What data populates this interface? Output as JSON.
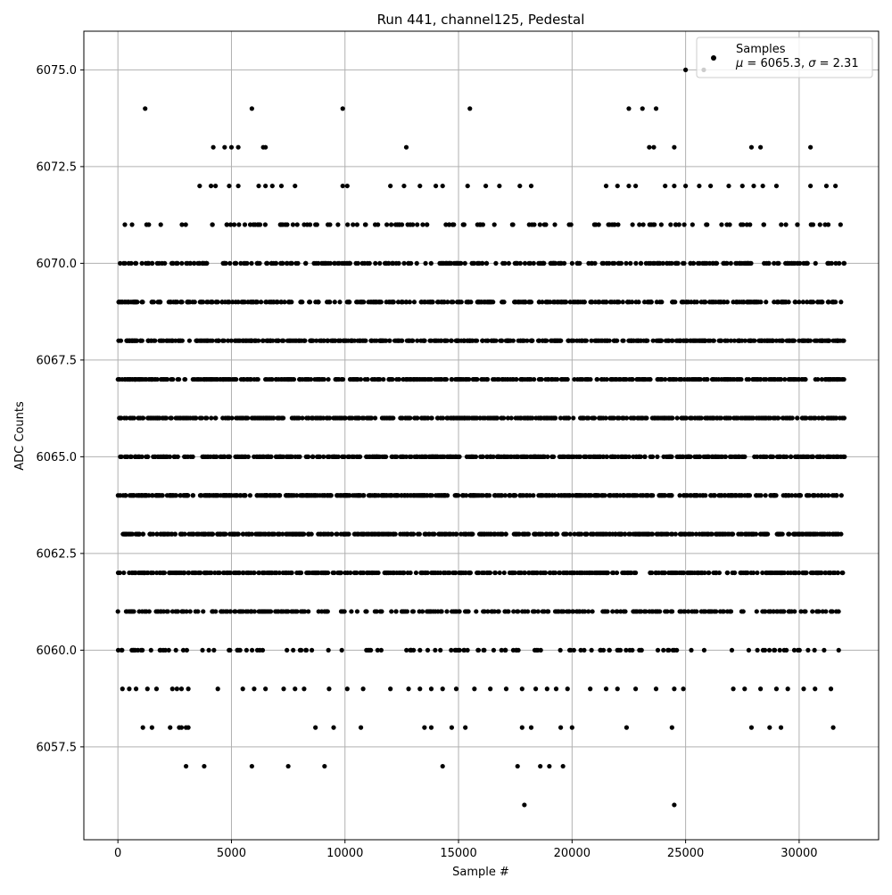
{
  "chart_data": {
    "type": "scatter",
    "title": "Run 441, channel125, Pedestal",
    "xlabel": "Sample #",
    "ylabel": "ADC Counts",
    "xlim": [
      -1500,
      33500
    ],
    "ylim": [
      6055.1,
      6076.0
    ],
    "x_ticks": [
      0,
      5000,
      10000,
      15000,
      20000,
      25000,
      30000
    ],
    "x_tick_labels": [
      "0",
      "5000",
      "10000",
      "15000",
      "20000",
      "25000",
      "30000"
    ],
    "y_ticks": [
      6057.5,
      6060.0,
      6062.5,
      6065.0,
      6067.5,
      6070.0,
      6072.5,
      6075.0
    ],
    "y_tick_labels": [
      "6057.5",
      "6060.0",
      "6062.5",
      "6065.0",
      "6067.5",
      "6070.0",
      "6072.5",
      "6075.0"
    ],
    "grid": true,
    "legend_position": "top-right",
    "legend": {
      "label": "Samples",
      "stats_mu_symbol": "μ",
      "stats_sigma_symbol": "σ",
      "stats_mean": "6065.3",
      "stats_sigma": "2.31"
    },
    "marker_color": "#000000",
    "series": [
      {
        "name": "Samples",
        "dense_levels": [
          {
            "y": 6060,
            "x_range": [
              0,
              32000
            ],
            "density": 0.25
          },
          {
            "y": 6061,
            "x_range": [
              0,
              32000
            ],
            "density": 0.55
          },
          {
            "y": 6062,
            "x_range": [
              0,
              32000
            ],
            "density": 0.9
          },
          {
            "y": 6063,
            "x_range": [
              0,
              32000
            ],
            "density": 1.0
          },
          {
            "y": 6064,
            "x_range": [
              0,
              32000
            ],
            "density": 1.0
          },
          {
            "y": 6065,
            "x_range": [
              0,
              32000
            ],
            "density": 1.0
          },
          {
            "y": 6066,
            "x_range": [
              0,
              32000
            ],
            "density": 1.0
          },
          {
            "y": 6067,
            "x_range": [
              0,
              32000
            ],
            "density": 1.0
          },
          {
            "y": 6068,
            "x_range": [
              0,
              32000
            ],
            "density": 1.0
          },
          {
            "y": 6069,
            "x_range": [
              0,
              32000
            ],
            "density": 0.75
          },
          {
            "y": 6070,
            "x_range": [
              0,
              32000
            ],
            "density": 0.6
          },
          {
            "y": 6071,
            "x_range": [
              0,
              32000
            ],
            "density": 0.25
          }
        ],
        "sparse_points": [
          {
            "y": 6056,
            "x": [
              17900,
              24500
            ]
          },
          {
            "y": 6057,
            "x": [
              3000,
              3800,
              5900,
              7500,
              9100,
              14300,
              17600,
              18600,
              19000,
              19600
            ]
          },
          {
            "y": 6058,
            "x": [
              1100,
              1500,
              2300,
              2700,
              2800,
              3000,
              3100,
              8700,
              9500,
              10700,
              13500,
              13800,
              14700,
              15300,
              17800,
              18200,
              19500,
              20000,
              22400,
              24400,
              27900,
              28700,
              29200,
              31500
            ]
          },
          {
            "y": 6059,
            "x": [
              200,
              500,
              800,
              1300,
              1700,
              2400,
              2600,
              2800,
              3100,
              4400,
              5500,
              6000,
              6500,
              7300,
              7800,
              8200,
              9300,
              10100,
              10800,
              12000,
              12800,
              13300,
              13800,
              14300,
              14900,
              15700,
              16400,
              17100,
              17800,
              18400,
              18900,
              19300,
              19800,
              20800,
              21500,
              22000,
              22800,
              23700,
              24500,
              24900,
              27100,
              27600,
              28300,
              29000,
              29500,
              30200,
              30700,
              31400
            ]
          },
          {
            "y": 6072,
            "x": [
              3600,
              4100,
              4300,
              4900,
              5300,
              6200,
              6500,
              6800,
              7200,
              7800,
              9900,
              10100,
              12000,
              12600,
              13300,
              14000,
              14300,
              15400,
              16200,
              16800,
              17700,
              18200,
              21500,
              22000,
              22500,
              22800,
              24100,
              24500,
              25000,
              25600,
              26100,
              26900,
              27500,
              28000,
              28400,
              29000,
              30500,
              31200,
              31600
            ]
          },
          {
            "y": 6073,
            "x": [
              4200,
              4700,
              5000,
              5300,
              6400,
              6500,
              12700,
              23400,
              23600,
              24500,
              27900,
              28300,
              30500
            ]
          },
          {
            "y": 6074,
            "x": [
              1200,
              5900,
              9900,
              15500,
              22500,
              23100,
              23700
            ]
          },
          {
            "y": 6075,
            "x": [
              25000,
              25800
            ]
          }
        ]
      }
    ]
  }
}
